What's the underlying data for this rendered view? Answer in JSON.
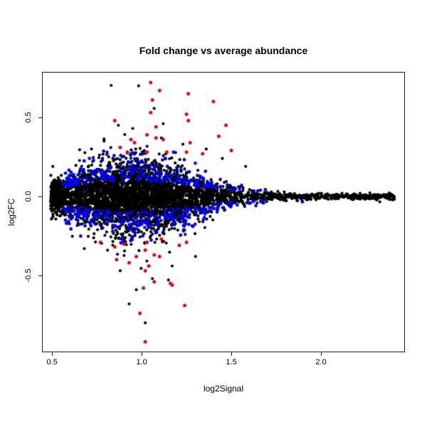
{
  "figure": {
    "title": "Fold change vs average abundance",
    "xlabel": "log2Signal",
    "ylabel": "log2FC"
  },
  "chart_data": {
    "type": "scatter",
    "title": "Fold change vs average abundance",
    "xlabel": "log2Signal",
    "ylabel": "log2FC",
    "xlim": [
      0.444,
      2.468
    ],
    "ylim": [
      -0.986,
      0.788
    ],
    "x_ticks": [
      0.5,
      1.0,
      1.5,
      2.0
    ],
    "x_tick_labels": [
      "0.5",
      "1.0",
      "1.5",
      "2.0"
    ],
    "y_ticks": [
      0.5,
      0.0,
      -0.5
    ],
    "y_tick_labels": [
      "0.5",
      "0.0",
      "-0.5"
    ],
    "grid": false,
    "legend": null,
    "background_color": "#ffffff",
    "frame_color": "#1f1f1f",
    "colors": {
      "black": "#000000",
      "blue": "#0000ee",
      "red": "#e60019"
    },
    "point_radius": {
      "black": 2.1,
      "blue": 2.4,
      "red": 2.5
    },
    "description": "MA-style scatter: dense black cloud of ~4200 points centered near log2FC=0, widest spread (about +/-0.25) at log2Signal 0.9-1.1, narrowing into a tight tail out to log2Signal 2.4; blue points fringe the cloud at moderate fold changes; red points mark extreme fold changes up to +0.72 and down to -0.92",
    "synthetic_cloud_model": {
      "seed": 20240613,
      "n_black": 4200,
      "x_mixture": {
        "gauss_weight": 0.74,
        "gauss_mean": 0.93,
        "gauss_sd": 0.27,
        "uniform_min": 0.5,
        "uniform_span": 1.92
      },
      "x_data_range": [
        0.492,
        2.415
      ],
      "y_sd_base": 0.009,
      "y_sd_peak": 0.108,
      "y_sd_center": 0.95,
      "y_sd_width2": 0.2,
      "straggler_fraction": 0.02,
      "straggler_scale": 2.1,
      "n_blue": 430,
      "blue_x_mean": 1.05,
      "blue_x_sd": 0.32,
      "blue_x_range": [
        0.56,
        1.92
      ],
      "blue_offset": 0.7,
      "blue_spread": 0.9,
      "blue_min_abs": 0.015
    },
    "red_points": [
      [
        1.05,
        0.72
      ],
      [
        1.1,
        0.67
      ],
      [
        1.26,
        0.65
      ],
      [
        1.06,
        0.61
      ],
      [
        1.4,
        0.6
      ],
      [
        1.05,
        0.53
      ],
      [
        1.25,
        0.52
      ],
      [
        0.85,
        0.48
      ],
      [
        1.26,
        0.48
      ],
      [
        1.47,
        0.45
      ],
      [
        1.08,
        0.44
      ],
      [
        1.03,
        0.39
      ],
      [
        1.43,
        0.38
      ],
      [
        1.08,
        0.37
      ],
      [
        1.12,
        0.36
      ],
      [
        0.94,
        0.36
      ],
      [
        0.96,
        0.34
      ],
      [
        1.27,
        0.34
      ],
      [
        0.88,
        0.31
      ],
      [
        1.5,
        0.29
      ],
      [
        0.92,
        0.28
      ],
      [
        1.03,
        0.28
      ],
      [
        1.14,
        0.28
      ],
      [
        1.25,
        0.28
      ],
      [
        1.34,
        0.27
      ],
      [
        0.77,
        -0.29
      ],
      [
        0.9,
        -0.3
      ],
      [
        1.03,
        -0.29
      ],
      [
        1.11,
        -0.27
      ],
      [
        1.21,
        -0.31
      ],
      [
        1.25,
        -0.29
      ],
      [
        0.85,
        -0.32
      ],
      [
        1.02,
        -0.34
      ],
      [
        0.86,
        -0.4
      ],
      [
        0.93,
        -0.42
      ],
      [
        0.97,
        -0.38
      ],
      [
        1.07,
        -0.37
      ],
      [
        1.1,
        -0.38
      ],
      [
        1.04,
        -0.44
      ],
      [
        1.02,
        -0.47
      ],
      [
        1.07,
        -0.54
      ],
      [
        1.16,
        -0.55
      ],
      [
        1.17,
        -0.56
      ],
      [
        1.01,
        -0.58
      ],
      [
        0.99,
        -0.74
      ],
      [
        1.24,
        -0.69
      ],
      [
        1.02,
        -0.92
      ]
    ],
    "black_outliers": [
      [
        0.87,
        0.45
      ],
      [
        1.12,
        0.46
      ],
      [
        0.95,
        0.43
      ],
      [
        1.11,
        0.37
      ],
      [
        0.79,
        0.35
      ],
      [
        1.23,
        0.33
      ],
      [
        1.36,
        0.3
      ],
      [
        0.72,
        0.3
      ],
      [
        1.45,
        0.24
      ],
      [
        1.58,
        0.19
      ],
      [
        0.93,
        -0.68
      ],
      [
        1.02,
        -0.8
      ],
      [
        0.97,
        -0.59
      ],
      [
        1.06,
        -0.52
      ],
      [
        0.88,
        -0.47
      ],
      [
        1.17,
        -0.44
      ],
      [
        1.3,
        -0.38
      ],
      [
        0.68,
        -0.33
      ]
    ]
  }
}
